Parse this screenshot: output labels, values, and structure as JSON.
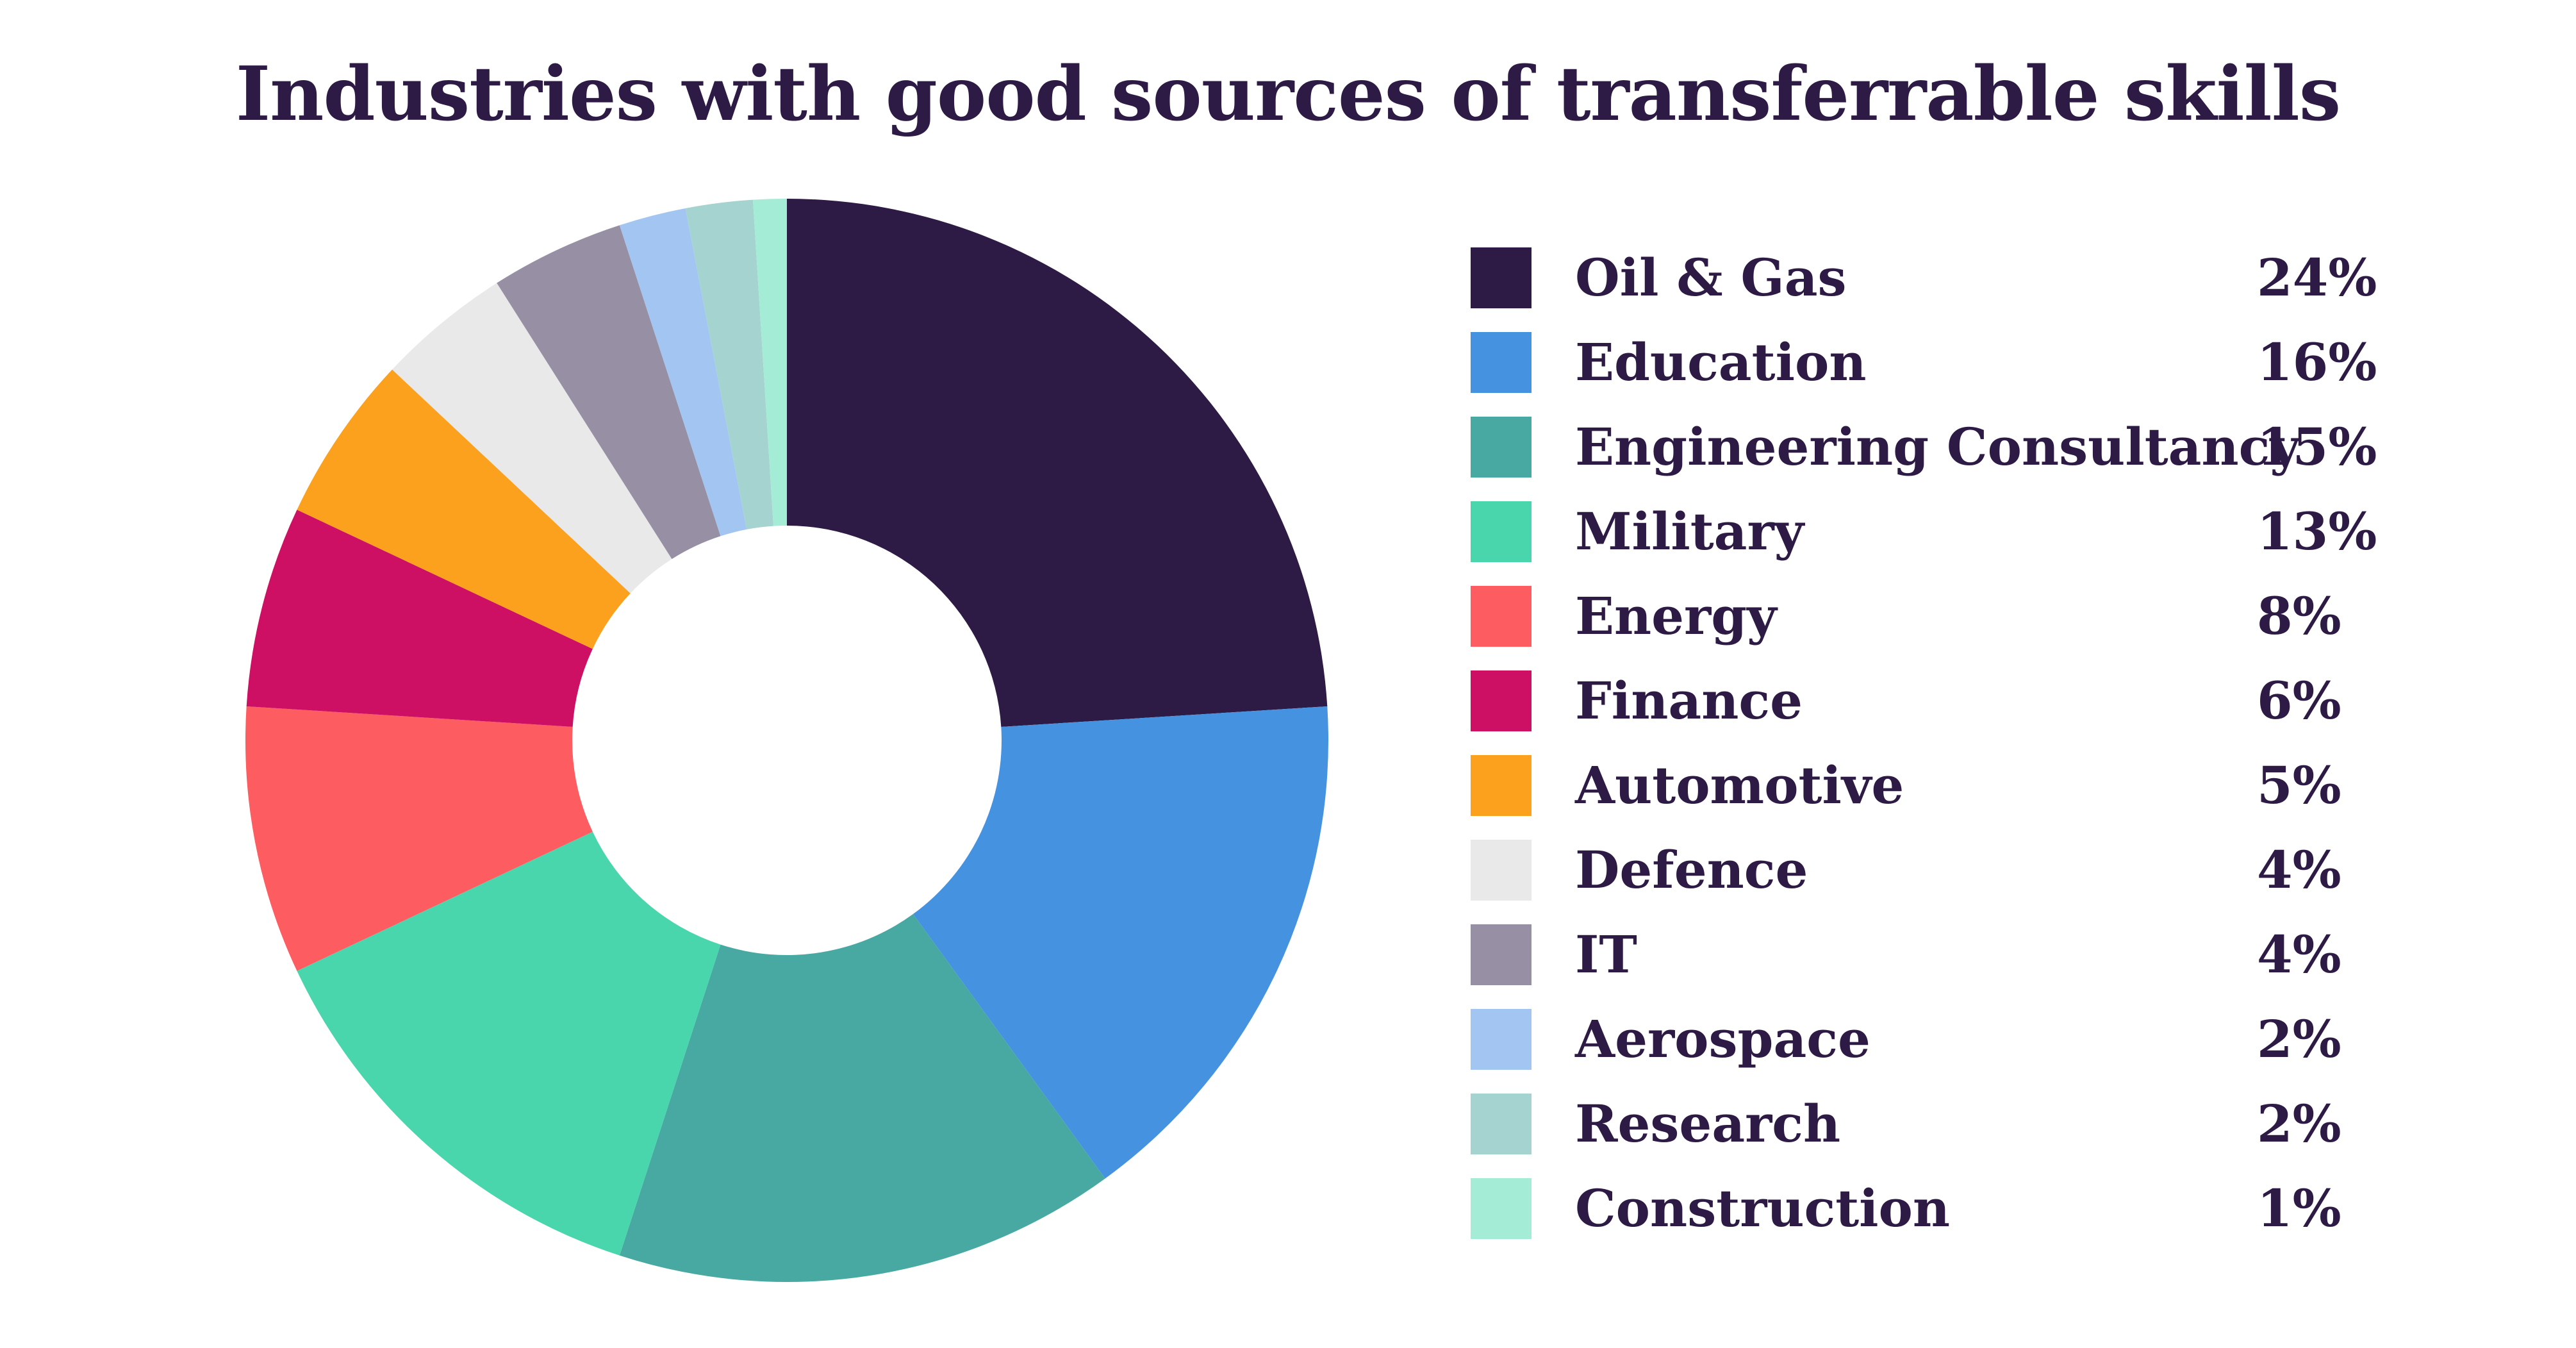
{
  "chart_data": {
    "type": "pie",
    "title": "Industries with good sources of transferrable skills",
    "variant": "donut",
    "legend_position": "right",
    "unit": "%",
    "categories": [
      "Oil & Gas",
      "Education",
      "Engineering Consultancy",
      "Military",
      "Energy",
      "Finance",
      "Automotive",
      "Defence",
      "IT",
      "Aerospace",
      "Research",
      "Construction"
    ],
    "values": [
      24,
      16,
      15,
      13,
      8,
      6,
      5,
      4,
      4,
      2,
      2,
      1
    ],
    "labels": [
      "24%",
      "16%",
      "15%",
      "13%",
      "8%",
      "6%",
      "5%",
      "4%",
      "4%",
      "2%",
      "2%",
      "1%"
    ],
    "colors": [
      "#2d1b45",
      "#4592e0",
      "#48a8a2",
      "#4ad6ad",
      "#fd5c61",
      "#ce1065",
      "#fca11d",
      "#e9e9e9",
      "#978fa3",
      "#a2c6f1",
      "#a4d3d0",
      "#a4ecd5"
    ]
  }
}
